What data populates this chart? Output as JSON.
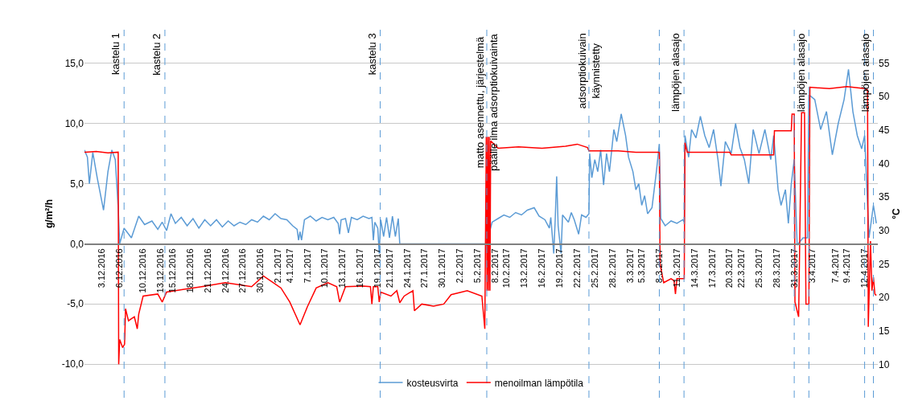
{
  "chart_data": {
    "type": "line",
    "ylabel": "g/m²/h",
    "y2label": "°C",
    "xlim": [
      "2016-11-30",
      "2017-04-14T06:00"
    ],
    "ylim": [
      -12.8,
      17.8
    ],
    "y2lim": [
      5,
      60
    ],
    "yticks": [
      {
        "value": -10,
        "label": "-10,0"
      },
      {
        "value": -5,
        "label": "-5,0"
      },
      {
        "value": 0,
        "label": "0,0"
      },
      {
        "value": 5,
        "label": "5,0"
      },
      {
        "value": 10,
        "label": "10,0"
      },
      {
        "value": 15,
        "label": "15,0"
      }
    ],
    "y2ticks": [
      10,
      15,
      20,
      25,
      30,
      35,
      40,
      45,
      50,
      55
    ],
    "xticks": [
      {
        "value": "2016-12-03",
        "label": "3.12.2016"
      },
      {
        "value": "2016-12-06",
        "label": "6.12.2016"
      },
      {
        "value": "2016-12-10",
        "label": "10.12.2016"
      },
      {
        "value": "2016-12-13",
        "label": "13.12.2016"
      },
      {
        "value": "2016-12-15",
        "label": "15.12.2016"
      },
      {
        "value": "2016-12-18",
        "label": "18.12.2016"
      },
      {
        "value": "2016-12-21",
        "label": "21.12.2016"
      },
      {
        "value": "2016-12-24",
        "label": "24.12.2016"
      },
      {
        "value": "2016-12-27",
        "label": "27.12.2016"
      },
      {
        "value": "2016-12-30",
        "label": "30.12.2016"
      },
      {
        "value": "2017-01-02",
        "label": "2.1.2017"
      },
      {
        "value": "2017-01-04",
        "label": "4.1.2017"
      },
      {
        "value": "2017-01-07",
        "label": "7.1.2017"
      },
      {
        "value": "2017-01-10",
        "label": "10.1.2017"
      },
      {
        "value": "2017-01-13",
        "label": "13.1.2017"
      },
      {
        "value": "2017-01-16",
        "label": "16.1.2017"
      },
      {
        "value": "2017-01-19",
        "label": "19.1.2017"
      },
      {
        "value": "2017-01-21",
        "label": "21.1.2017"
      },
      {
        "value": "2017-01-24",
        "label": "24.1.2017"
      },
      {
        "value": "2017-01-27",
        "label": "27.1.2017"
      },
      {
        "value": "2017-01-30",
        "label": "30.1.2017"
      },
      {
        "value": "2017-02-02",
        "label": "2.2.2017"
      },
      {
        "value": "2017-02-05",
        "label": "5.2.2017"
      },
      {
        "value": "2017-02-08",
        "label": "8.2.2017"
      },
      {
        "value": "2017-02-10",
        "label": "10.2.2017"
      },
      {
        "value": "2017-02-13",
        "label": "13.2.2017"
      },
      {
        "value": "2017-02-16",
        "label": "16.2.2017"
      },
      {
        "value": "2017-02-19",
        "label": "19.2.2017"
      },
      {
        "value": "2017-02-22",
        "label": "22.2.2017"
      },
      {
        "value": "2017-02-25",
        "label": "25.2.2017"
      },
      {
        "value": "2017-02-28",
        "label": "28.2.2017"
      },
      {
        "value": "2017-03-03",
        "label": "3.3.2017"
      },
      {
        "value": "2017-03-05",
        "label": "5.3.2017"
      },
      {
        "value": "2017-03-08",
        "label": "8.3.2017"
      },
      {
        "value": "2017-03-11",
        "label": "11.3.2017"
      },
      {
        "value": "2017-03-14",
        "label": "14.3.2017"
      },
      {
        "value": "2017-03-17",
        "label": "17.3.2017"
      },
      {
        "value": "2017-03-20",
        "label": "20.3.2017"
      },
      {
        "value": "2017-03-22",
        "label": "22.3.2017"
      },
      {
        "value": "2017-03-25",
        "label": "25.3.2017"
      },
      {
        "value": "2017-03-28",
        "label": "28.3.2017"
      },
      {
        "value": "2017-03-31",
        "label": "31.3.2017"
      },
      {
        "value": "2017-04-03",
        "label": "3.4.2017"
      },
      {
        "value": "2017-04-07",
        "label": "7.4.2017"
      },
      {
        "value": "2017-04-09",
        "label": "9.4.2017"
      },
      {
        "value": "2017-04-12",
        "label": "12.4.2017"
      }
    ],
    "grid": "y",
    "legend": "bottom",
    "series": [
      {
        "name": "kosteusvirta",
        "color": "#5b9bd5",
        "x": [
          "2016-11-30T00:00",
          "2016-11-30T12:00",
          "2016-11-30T20:00",
          "2016-12-01T10:00",
          "2016-12-02T04:00",
          "2016-12-03T06:00",
          "2016-12-04T00:00",
          "2016-12-04T16:00",
          "2016-12-05T06:00",
          "2016-12-05T18:00",
          "2016-12-06T00:00",
          "2016-12-06T18:00",
          "2016-12-08T00:00",
          "2016-12-09T06:00",
          "2016-12-10T06:00",
          "2016-12-11T12:00",
          "2016-12-12T12:00",
          "2016-12-13T06:00",
          "2016-12-14T00:00",
          "2016-12-14T18:00",
          "2016-12-15T12:00",
          "2016-12-16T12:00",
          "2016-12-17T12:00",
          "2016-12-18T12:00",
          "2016-12-19T12:00",
          "2016-12-20T12:00",
          "2016-12-21T12:00",
          "2016-12-22T12:00",
          "2016-12-23T12:00",
          "2016-12-24T12:00",
          "2016-12-25T12:00",
          "2016-12-26T12:00",
          "2016-12-27T12:00",
          "2016-12-28T12:00",
          "2016-12-29T12:00",
          "2016-12-30T12:00",
          "2016-12-31T12:00",
          "2017-01-01T12:00",
          "2017-01-02T12:00",
          "2017-01-03T12:00",
          "2017-01-04T12:00",
          "2017-01-05T06:00",
          "2017-01-05T12:00",
          "2017-01-05T18:00",
          "2017-01-06T00:00",
          "2017-01-06T12:00",
          "2017-01-07T12:00",
          "2017-01-08T12:00",
          "2017-01-09T12:00",
          "2017-01-10T12:00",
          "2017-01-11T12:00",
          "2017-01-12T06:00",
          "2017-01-12T12:00",
          "2017-01-12T18:00",
          "2017-01-13T12:00",
          "2017-01-14T00:00",
          "2017-01-14T12:00",
          "2017-01-15T12:00",
          "2017-01-16T12:00",
          "2017-01-17T12:00",
          "2017-01-18T00:00",
          "2017-01-18T06:00",
          "2017-01-18T12:00",
          "2017-01-19T00:00",
          "2017-01-19T06:00",
          "2017-01-19T12:00",
          "2017-01-20T00:00",
          "2017-01-20T12:00",
          "2017-01-21T00:00",
          "2017-01-21T12:00",
          "2017-01-22T00:00",
          "2017-01-22T12:00",
          "2017-01-22T18:00",
          "2017-02-06T12:00",
          "2017-02-07T12:00",
          "2017-02-08T12:00",
          "2017-02-09T12:00",
          "2017-02-10T12:00",
          "2017-02-11T12:00",
          "2017-02-12T12:00",
          "2017-02-13T12:00",
          "2017-02-14T16:00",
          "2017-02-15T12:00",
          "2017-02-16T12:00",
          "2017-02-17T06:00",
          "2017-02-17T12:00",
          "2017-02-18T00:00",
          "2017-02-18T06:00",
          "2017-02-18T12:00",
          "2017-02-18T18:00",
          "2017-02-19T06:00",
          "2017-02-19T12:00",
          "2017-02-20T12:00",
          "2017-02-21T00:00",
          "2017-02-21T12:00",
          "2017-02-22T06:00",
          "2017-02-22T18:00",
          "2017-02-23T12:00",
          "2017-02-24T00:00",
          "2017-02-24T03:00",
          "2017-02-24T12:00",
          "2017-02-25T00:00",
          "2017-02-25T12:00",
          "2017-02-26T00:00",
          "2017-02-26T12:00",
          "2017-02-27T00:00",
          "2017-02-27T12:00",
          "2017-02-28T06:00",
          "2017-02-28T18:00",
          "2017-03-01T12:00",
          "2017-03-02T06:00",
          "2017-03-02T18:00",
          "2017-03-03T12:00",
          "2017-03-04T00:00",
          "2017-03-04T12:00",
          "2017-03-05T00:00",
          "2017-03-05T12:00",
          "2017-03-06T00:00",
          "2017-03-06T18:00",
          "2017-03-07T12:00",
          "2017-03-08T00:00",
          "2017-03-08T06:00",
          "2017-03-09T00:00",
          "2017-03-10T00:00",
          "2017-03-11T00:00",
          "2017-03-12T00:00",
          "2017-03-12T06:00",
          "2017-03-12T09:00",
          "2017-03-13T00:00",
          "2017-03-13T12:00",
          "2017-03-14T06:00",
          "2017-03-15T00:00",
          "2017-03-15T18:00",
          "2017-03-16T12:00",
          "2017-03-17T06:00",
          "2017-03-18T00:00",
          "2017-03-18T12:00",
          "2017-03-19T06:00",
          "2017-03-20T06:00",
          "2017-03-21T00:00",
          "2017-03-21T18:00",
          "2017-03-22T12:00",
          "2017-03-23T06:00",
          "2017-03-24T00:00",
          "2017-03-25T00:00",
          "2017-03-26T00:00",
          "2017-03-27T00:00",
          "2017-03-27T12:00",
          "2017-03-28T06:00",
          "2017-03-28T18:00",
          "2017-03-29T12:00",
          "2017-03-30T00:00",
          "2017-03-30T12:00",
          "2017-03-31T00:00",
          "2017-03-31T12:00",
          "2017-04-01T12:00",
          "2017-04-02T06:00",
          "2017-04-02T12:00",
          "2017-04-03T12:00",
          "2017-04-04T12:00",
          "2017-04-05T12:00",
          "2017-04-06T12:00",
          "2017-04-07T12:00",
          "2017-04-08T12:00",
          "2017-04-09T06:00",
          "2017-04-10T00:00",
          "2017-04-10T18:00",
          "2017-04-11T12:00",
          "2017-04-12T00:00",
          "2017-04-12T18:00",
          "2017-04-13T12:00",
          "2017-04-14T00:00"
        ],
        "values": [
          7.8,
          7.2,
          5.0,
          7.6,
          5.5,
          2.8,
          6.0,
          7.8,
          7.0,
          3.0,
          0.0,
          1.3,
          0.5,
          2.3,
          1.6,
          1.9,
          1.2,
          1.8,
          1.1,
          2.5,
          1.7,
          2.2,
          1.5,
          2.1,
          1.3,
          2.0,
          1.5,
          2.0,
          1.4,
          1.9,
          1.5,
          1.8,
          1.6,
          2.0,
          1.8,
          2.3,
          2.0,
          2.5,
          2.1,
          2.0,
          1.5,
          1.2,
          0.3,
          1.0,
          0.3,
          2.0,
          2.3,
          1.9,
          2.2,
          2.0,
          2.2,
          1.7,
          0.8,
          2.0,
          2.1,
          0.9,
          2.2,
          2.0,
          2.3,
          2.1,
          2.2,
          0.3,
          1.8,
          1.3,
          -0.8,
          2.0,
          0.6,
          2.2,
          0.5,
          2.3,
          0.6,
          2.1,
          0.0,
          0.0,
          1.8,
          2.1,
          2.4,
          2.2,
          2.6,
          2.4,
          2.8,
          3.0,
          2.3,
          2.0,
          1.3,
          2.2,
          -0.8,
          2.0,
          5.6,
          1.5,
          -0.8,
          2.4,
          1.8,
          2.6,
          2.0,
          0.8,
          2.4,
          2.2,
          2.5,
          7.5,
          5.5,
          7.0,
          6.0,
          7.8,
          4.9,
          7.5,
          6.0,
          9.5,
          8.5,
          10.8,
          9.0,
          7.2,
          6.0,
          4.5,
          5.0,
          3.2,
          4.0,
          2.5,
          3.0,
          6.0,
          8.3,
          2.1,
          1.5,
          1.9,
          1.7,
          2.0,
          1.8,
          9.0,
          7.2,
          9.5,
          8.8,
          10.6,
          9.0,
          8.0,
          9.5,
          7.0,
          4.8,
          8.5,
          7.5,
          10.0,
          8.0,
          7.0,
          5.0,
          9.5,
          7.5,
          9.5,
          7.0,
          9.0,
          4.5,
          3.2,
          4.5,
          1.7,
          5.0,
          7.0,
          -0.1,
          0.5,
          0.5,
          12.4,
          12.0,
          9.5,
          11.0,
          7.4,
          10.0,
          12.0,
          14.5,
          11.0,
          9.0,
          7.9,
          9.0,
          0.5,
          3.2,
          1.7
        ]
      },
      {
        "name": "menoilman lämpötila",
        "color": "#ff0000",
        "axis": "y2",
        "x": [
          "2016-11-30T00:00",
          "2016-12-02T00:00",
          "2016-12-04T00:00",
          "2016-12-05T18:00",
          "2016-12-05T20:00",
          "2016-12-06T00:00",
          "2016-12-06T12:00",
          "2016-12-06T20:00",
          "2016-12-07T00:00",
          "2016-12-07T12:00",
          "2016-12-08T12:00",
          "2016-12-09T00:00",
          "2016-12-09T06:00",
          "2016-12-10T00:00",
          "2016-12-12T12:00",
          "2016-12-13T06:00",
          "2016-12-14T00:00",
          "2016-12-17T00:00",
          "2016-12-20T00:00",
          "2016-12-24T00:00",
          "2016-12-28T12:00",
          "2016-12-30T12:00",
          "2017-01-01T12:00",
          "2017-01-02T12:00",
          "2017-01-04T00:00",
          "2017-01-05T18:00",
          "2017-01-07T00:00",
          "2017-01-08T12:00",
          "2017-01-10T12:00",
          "2017-01-12T00:00",
          "2017-01-12T12:00",
          "2017-01-13T12:00",
          "2017-01-16T12:00",
          "2017-01-17T18:00",
          "2017-01-18T00:00",
          "2017-01-18T06:00",
          "2017-01-19T00:00",
          "2017-01-19T06:00",
          "2017-01-19T12:00",
          "2017-01-21T06:00",
          "2017-01-22T06:00",
          "2017-01-22T18:00",
          "2017-01-23T12:00",
          "2017-01-25T00:00",
          "2017-01-25T06:00",
          "2017-01-26T12:00",
          "2017-01-28T12:00",
          "2017-01-30T06:00",
          "2017-01-31T12:00",
          "2017-02-03T06:00",
          "2017-02-05T18:00",
          "2017-02-06T06:00",
          "2017-02-06T12:00",
          "2017-02-06T15:00",
          "2017-02-06T18:00",
          "2017-02-06T21:00",
          "2017-02-07T00:00",
          "2017-02-07T03:00",
          "2017-02-07T06:00",
          "2017-02-08T12:00",
          "2017-02-12T00:00",
          "2017-02-16T00:00",
          "2017-02-20T00:00",
          "2017-02-22T00:00",
          "2017-02-23T18:00",
          "2017-02-24T00:00",
          "2017-03-01T00:00",
          "2017-03-04T00:00",
          "2017-03-08T00:00",
          "2017-03-08T03:00",
          "2017-03-08T18:00",
          "2017-03-10T00:00",
          "2017-03-10T12:00",
          "2017-03-10T18:00",
          "2017-03-11T00:00",
          "2017-03-12T06:00",
          "2017-03-12T09:00",
          "2017-03-12T18:00",
          "2017-03-20T00:00",
          "2017-03-20T06:00",
          "2017-03-27T12:00",
          "2017-03-27T15:00",
          "2017-03-30T12:00",
          "2017-03-30T15:00",
          "2017-03-31T00:00",
          "2017-03-31T03:00",
          "2017-03-31T18:00",
          "2017-04-01T06:00",
          "2017-04-01T18:00",
          "2017-04-02T00:00",
          "2017-04-02T12:00",
          "2017-04-02T16:00",
          "2017-04-06T00:00",
          "2017-04-09T00:00",
          "2017-04-12T00:00",
          "2017-04-12T12:00",
          "2017-04-12T15:00",
          "2017-04-13T00:00",
          "2017-04-13T06:00",
          "2017-04-13T12:00",
          "2017-04-13T18:00",
          "2017-04-14T00:00"
        ],
        "values": [
          41.7,
          41.8,
          41.6,
          41.7,
          10.0,
          13.7,
          12.5,
          13.0,
          18.3,
          16.5,
          17.1,
          15.3,
          17.5,
          20.2,
          20.5,
          19.3,
          20.8,
          21.2,
          21.6,
          22.2,
          21.6,
          23.2,
          22.0,
          21.4,
          19.3,
          15.9,
          18.6,
          21.4,
          22.2,
          21.6,
          19.3,
          21.6,
          21.7,
          21.6,
          19.0,
          21.6,
          21.6,
          19.3,
          20.8,
          20.2,
          21.0,
          19.2,
          20.2,
          21.0,
          18.0,
          19.0,
          18.7,
          19.0,
          20.4,
          21.0,
          20.2,
          15.3,
          44.0,
          21.0,
          44.0,
          21.0,
          44.0,
          21.0,
          43.4,
          42.3,
          42.5,
          42.3,
          42.6,
          42.9,
          42.4,
          41.9,
          41.9,
          41.7,
          41.7,
          25.0,
          22.2,
          22.8,
          22.5,
          20.5,
          22.8,
          22.8,
          43.1,
          41.7,
          41.7,
          41.3,
          41.3,
          44.9,
          44.9,
          47.4,
          47.4,
          19.3,
          17.1,
          47.6,
          47.6,
          19.0,
          19.0,
          51.4,
          51.2,
          51.5,
          51.2,
          51.0,
          15.6,
          28.4,
          21.0,
          23.0,
          20.5,
          20.3
        ]
      }
    ],
    "ref_lines": [
      {
        "axis": "x",
        "value": "2016-12-06T18:00",
        "label": "kastelu 1",
        "color": "#5b9bd5",
        "line_style": "dashed"
      },
      {
        "axis": "x",
        "value": "2016-12-13T17:00",
        "label": "kastelu 2",
        "color": "#5b9bd5",
        "line_style": "dashed"
      },
      {
        "axis": "x",
        "value": "2017-01-19T10:00",
        "label": "kastelu 3",
        "color": "#5b9bd5",
        "line_style": "dashed"
      },
      {
        "axis": "x",
        "value": "2017-02-06T14:00",
        "label": "matto asennettu, järjestelmä\npäälle ilma adsorptiokuivainta",
        "color": "#5b9bd5",
        "line_style": "dashed"
      },
      {
        "axis": "x",
        "value": "2017-02-24T00:00",
        "label": "adsorptiokuivain\nkäynnistetty",
        "color": "#5b9bd5",
        "line_style": "dashed"
      },
      {
        "axis": "x",
        "value": "2017-03-08T00:00",
        "color": "#5b9bd5",
        "line_style": "dashed"
      },
      {
        "axis": "x",
        "value": "2017-03-12T05:00",
        "label": "lämpöjen alasajo",
        "color": "#5b9bd5",
        "line_style": "dashed"
      },
      {
        "axis": "x",
        "value": "2017-03-31T00:00",
        "color": "#5b9bd5",
        "line_style": "dashed"
      },
      {
        "axis": "x",
        "value": "2017-04-02T12:00",
        "label": "lämpöjen alasajo",
        "color": "#5b9bd5",
        "line_style": "dashed"
      },
      {
        "axis": "x",
        "value": "2017-04-12T00:00",
        "color": "#5b9bd5",
        "line_style": "dashed"
      },
      {
        "axis": "x",
        "value": "2017-04-13T12:00",
        "label": "lämpöjen alasajo",
        "color": "#5b9bd5",
        "line_style": "dashed"
      }
    ]
  }
}
